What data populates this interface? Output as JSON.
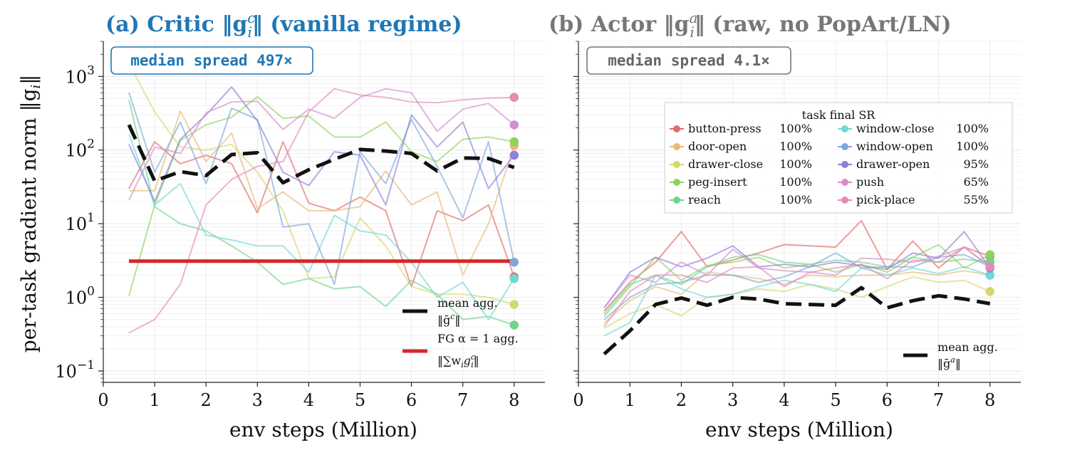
{
  "colors": {
    "critic_title": "#1f77b4",
    "actor_title": "#777777",
    "fg_line": "#d62728",
    "mean_line": "#111111"
  },
  "chart_data": [
    {
      "type": "line",
      "title": "(a) Critic ‖g",
      "title_sup": "c",
      "title_sub": "i",
      "title_suffix": "‖  (vanilla regime)",
      "xlabel": "env steps (Million)",
      "ylabel": "per-task gradient norm  ‖g",
      "ylabel_sub": "i",
      "ylabel_suffix": "‖",
      "yscale": "log",
      "ylim": [
        0.07,
        3000
      ],
      "xlim": [
        0,
        8.6
      ],
      "x_ticks": [
        "0",
        "1",
        "2",
        "3",
        "4",
        "5",
        "6",
        "7",
        "8"
      ],
      "y_ticks": [
        {
          "base": "10",
          "exp": "−1",
          "value": 0.1
        },
        {
          "base": "10",
          "exp": "0",
          "value": 1
        },
        {
          "base": "10",
          "exp": "1",
          "value": 10
        },
        {
          "base": "10",
          "exp": "2",
          "value": 100
        },
        {
          "base": "10",
          "exp": "3",
          "value": 1000
        }
      ],
      "grid": true,
      "annotation": "median spread 497×",
      "x": [
        0.5,
        1,
        1.5,
        2,
        2.5,
        3,
        3.5,
        4,
        4.5,
        5,
        5.5,
        6,
        6.5,
        7,
        7.5,
        8
      ],
      "series": [
        {
          "task": "button-press",
          "color": "#e06c6c",
          "values": [
            30,
            130,
            65,
            85,
            65,
            14,
            130,
            19,
            15,
            23,
            15,
            1.4,
            15,
            11,
            18,
            1.9
          ]
        },
        {
          "task": "door-open",
          "color": "#e8b87a",
          "values": [
            28,
            28,
            340,
            70,
            170,
            16,
            27,
            15,
            15,
            17,
            52,
            18,
            27,
            2.0,
            10,
            115
          ]
        },
        {
          "task": "drawer-close",
          "color": "#d4d86e",
          "values": [
            1500,
            330,
            110,
            100,
            120,
            50,
            15,
            1.8,
            1.9,
            12,
            5,
            1.4,
            1.1,
            1.1,
            1.0,
            0.8
          ]
        },
        {
          "task": "peg-insert",
          "color": "#8ed45a",
          "values": [
            1.05,
            18,
            135,
            220,
            280,
            530,
            270,
            290,
            150,
            150,
            240,
            95,
            70,
            140,
            150,
            130
          ]
        },
        {
          "task": "reach",
          "color": "#6fd48f",
          "values": [
            480,
            17,
            10,
            8,
            5,
            3,
            1.5,
            1.8,
            1.3,
            1.4,
            0.75,
            1.7,
            1.1,
            0.5,
            0.55,
            0.42
          ]
        },
        {
          "task": "window-close",
          "color": "#6fd8d8",
          "values": [
            165,
            18,
            35,
            7,
            6,
            5,
            5,
            2.2,
            13,
            8,
            7,
            3,
            1.0,
            1.6,
            0.5,
            1.8
          ]
        },
        {
          "task": "window-open",
          "color": "#7fa8d8",
          "values": [
            600,
            50,
            240,
            35,
            370,
            260,
            9,
            10,
            1.5,
            95,
            35,
            260,
            60,
            12,
            130,
            3.0
          ]
        },
        {
          "task": "drawer-open",
          "color": "#8f80d8",
          "values": [
            120,
            20,
            140,
            300,
            720,
            250,
            50,
            33,
            95,
            85,
            18,
            300,
            110,
            240,
            30,
            85
          ]
        },
        {
          "task": "push",
          "color": "#d68ed0",
          "values": [
            21,
            110,
            90,
            320,
            450,
            460,
            190,
            360,
            270,
            520,
            680,
            600,
            180,
            360,
            430,
            220
          ]
        },
        {
          "task": "pick-place",
          "color": "#e38ab5",
          "values": [
            0.33,
            0.5,
            1.5,
            18,
            40,
            60,
            70,
            330,
            680,
            560,
            520,
            450,
            440,
            480,
            510,
            520
          ]
        }
      ],
      "aggregates": [
        {
          "kind": "mean",
          "label": "mean agg.",
          "label2": "‖ḡ",
          "label2_sup": "c",
          "label2_suffix": "‖",
          "values": [
            220,
            38,
            51,
            45,
            87,
            92,
            36,
            54,
            75,
            102,
            97,
            90,
            52,
            78,
            77,
            58
          ]
        },
        {
          "kind": "fg",
          "label": "FG α = 1 agg.",
          "label2": "‖∑w",
          "label2_sub": "i",
          "label2_mid": "g",
          "label2_sup": "c",
          "label2_sub2": "i",
          "label2_suffix": "‖",
          "values": [
            3.1,
            3.1,
            3.1,
            3.1,
            3.1,
            3.1,
            3.1,
            3.1,
            3.1,
            3.1,
            3.1,
            3.1,
            3.1,
            3.1,
            3.1,
            3.1
          ]
        }
      ]
    },
    {
      "type": "line",
      "title": "(b) Actor  ‖g",
      "title_sup": "a",
      "title_sub": "i",
      "title_suffix": "‖  (raw, no PopArt/LN)",
      "xlabel": "env steps (Million)",
      "yscale": "log",
      "ylim": [
        0.07,
        3000
      ],
      "xlim": [
        0,
        8.6
      ],
      "x_ticks": [
        "0",
        "1",
        "2",
        "3",
        "4",
        "5",
        "6",
        "7",
        "8"
      ],
      "grid": true,
      "annotation": "median spread 4.1×",
      "legend_title": "task  final SR",
      "legend": [
        {
          "task": "button-press",
          "sr": "100%"
        },
        {
          "task": "door-open",
          "sr": "100%"
        },
        {
          "task": "drawer-close",
          "sr": "100%"
        },
        {
          "task": "peg-insert",
          "sr": "100%"
        },
        {
          "task": "reach",
          "sr": "100%"
        },
        {
          "task": "window-close",
          "sr": "100%"
        },
        {
          "task": "window-open",
          "sr": "100%"
        },
        {
          "task": "drawer-open",
          "sr": "95%"
        },
        {
          "task": "push",
          "sr": "65%"
        },
        {
          "task": "pick-place",
          "sr": "55%"
        }
      ],
      "x": [
        0.5,
        1,
        1.5,
        2,
        2.5,
        3,
        3.5,
        4,
        4.5,
        5,
        5.5,
        6,
        6.5,
        7,
        7.5,
        8
      ],
      "series": [
        {
          "task": "button-press",
          "color": "#e06c6c",
          "values": [
            0.65,
            1.6,
            3.0,
            7.8,
            2.6,
            3.2,
            4.0,
            5.2,
            5.0,
            4.8,
            11,
            2.4,
            5.8,
            2.5,
            4.8,
            3.6
          ]
        },
        {
          "task": "door-open",
          "color": "#e8b87a",
          "values": [
            0.45,
            0.9,
            1.4,
            1.1,
            2.2,
            2.0,
            1.8,
            1.5,
            2.0,
            1.9,
            2.0,
            2.0,
            2.2,
            2.0,
            2.3,
            2.0
          ]
        },
        {
          "task": "drawer-close",
          "color": "#d4d86e",
          "values": [
            0.38,
            0.6,
            0.8,
            0.56,
            1.0,
            1.1,
            1.3,
            1.2,
            1.5,
            1.3,
            1.0,
            1.4,
            1.9,
            1.6,
            1.7,
            1.2
          ]
        },
        {
          "task": "peg-insert",
          "color": "#8ed45a",
          "values": [
            0.55,
            1.4,
            3.5,
            1.7,
            2.7,
            3.0,
            3.5,
            2.5,
            2.8,
            2.2,
            2.8,
            2.2,
            3.5,
            5.2,
            2.5,
            3.8
          ]
        },
        {
          "task": "reach",
          "color": "#6fd48f",
          "values": [
            0.6,
            1.5,
            2.0,
            1.5,
            2.6,
            3.5,
            3.8,
            3.0,
            2.8,
            3.2,
            3.0,
            2.6,
            3.5,
            3.0,
            3.3,
            3.0
          ]
        },
        {
          "task": "window-close",
          "color": "#6fd8d8",
          "values": [
            0.3,
            0.45,
            2.0,
            1.3,
            1.0,
            1.1,
            1.4,
            1.7,
            1.5,
            1.2,
            2.5,
            2.0,
            2.5,
            2.1,
            2.6,
            2.0
          ]
        },
        {
          "task": "window-open",
          "color": "#7fa8d8",
          "values": [
            0.5,
            1.0,
            1.5,
            1.6,
            2.0,
            2.0,
            1.6,
            1.9,
            2.6,
            4.0,
            2.5,
            2.6,
            2.6,
            3.5,
            3.8,
            2.6
          ]
        },
        {
          "task": "drawer-open",
          "color": "#8f80d8",
          "values": [
            0.72,
            2.2,
            3.5,
            2.6,
            3.4,
            5.0,
            2.6,
            2.8,
            2.6,
            3.0,
            2.7,
            2.4,
            4.0,
            3.4,
            7.8,
            2.5
          ]
        },
        {
          "task": "push",
          "color": "#d68ed0",
          "values": [
            0.72,
            2.0,
            1.6,
            3.0,
            2.0,
            4.5,
            2.5,
            2.3,
            2.2,
            2.0,
            3.4,
            3.3,
            3.0,
            3.6,
            4.8,
            2.6
          ]
        },
        {
          "task": "pick-place",
          "color": "#e38ab5",
          "values": [
            0.4,
            1.2,
            2.0,
            2.0,
            1.6,
            2.5,
            2.6,
            1.4,
            2.2,
            2.5,
            2.8,
            1.8,
            3.2,
            3.0,
            4.8,
            2.6
          ]
        }
      ],
      "aggregates": [
        {
          "kind": "mean",
          "label": "mean agg.",
          "label2": "‖ḡ",
          "label2_sup": "a",
          "label2_suffix": "‖",
          "values": [
            0.17,
            0.35,
            0.8,
            0.98,
            0.78,
            1.0,
            0.95,
            0.82,
            0.8,
            0.78,
            1.35,
            0.72,
            0.9,
            1.05,
            0.95,
            0.82
          ]
        }
      ]
    }
  ]
}
